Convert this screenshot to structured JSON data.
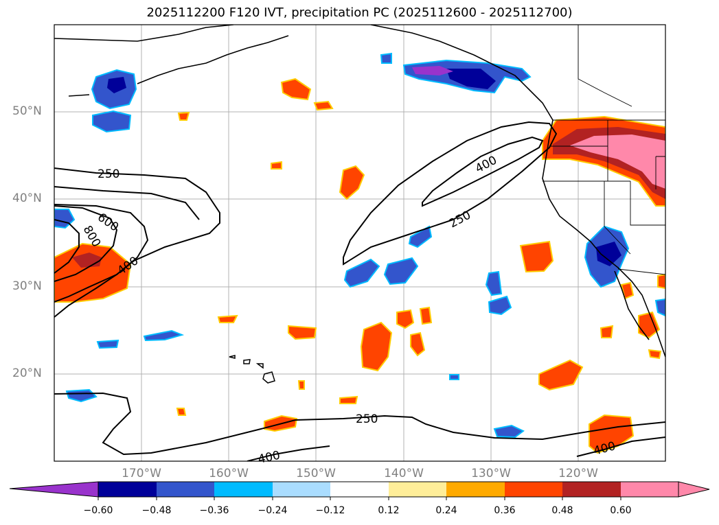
{
  "title": "2025112200 F120 IVT, precipitation PC (2025112600 - 2025112700)",
  "lat_labels": [
    "50°N",
    "40°N",
    "30°N",
    "20°N"
  ],
  "lon_labels": [
    "170°W",
    "160°W",
    "150°W",
    "140°W",
    "130°W",
    "120°W"
  ],
  "contour_labels": [
    "250",
    "600",
    "800",
    "400",
    "400",
    "250",
    "250",
    "400",
    "400"
  ],
  "colorbar": {
    "ticks": [
      "−0.60",
      "−0.48",
      "−0.36",
      "−0.24",
      "−0.12",
      "0.12",
      "0.24",
      "0.36",
      "0.48",
      "0.60"
    ],
    "colors": [
      "#9933cc",
      "#000099",
      "#3355cc",
      "#00bbff",
      "#aaddff",
      "#ffffff",
      "#ffee99",
      "#ffaa00",
      "#ff4400",
      "#b22222",
      "#ff88aa",
      "#ff88aa"
    ],
    "extend": "both"
  },
  "map_extent": {
    "lon": [
      -180,
      -110
    ],
    "lat": [
      10,
      60
    ]
  },
  "styles": {
    "grid_color": "#b0b0b0",
    "label_color": "#808080"
  }
}
